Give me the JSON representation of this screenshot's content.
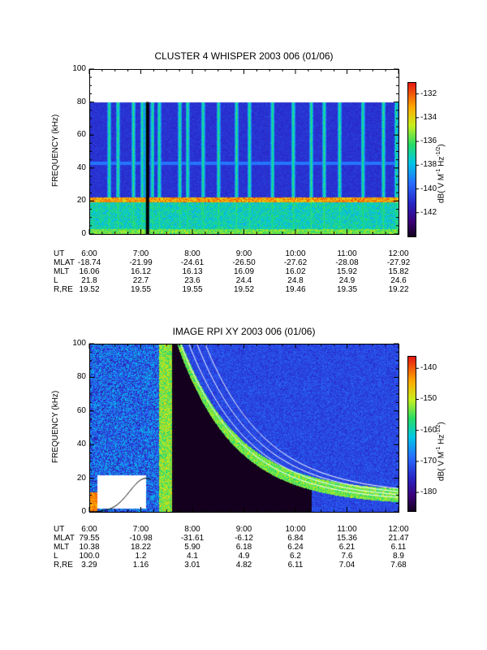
{
  "chart_data": [
    {
      "type": "heatmap",
      "title": "CLUSTER 4 WHISPER 2003 006 (01/06)",
      "ylabel": "FREQUENCY (kHz)",
      "colorbar_label": "dB( V M⁻¹ Hz⁻¹ᐟ²)",
      "colorbar_label_parts": {
        "main": "dB( V M",
        "sup1": "-1",
        "mid": " Hz",
        "sup2": "-1/2",
        "end": ")"
      },
      "ylim": [
        0,
        100
      ],
      "yticks": [
        "0",
        "20",
        "40",
        "60",
        "80",
        "100"
      ],
      "colorbar_ticks": [
        "-132",
        "-134",
        "-136",
        "-138",
        "-140",
        "-142"
      ],
      "colorbar_range": [
        -144,
        -131
      ],
      "x_ticks": [
        "6:00",
        "7:00",
        "8:00",
        "9:00",
        "10:00",
        "11:00",
        "12:00"
      ],
      "data_top_khz": 80,
      "features": {
        "plasma_line_khz": 21,
        "upper_line_khz": 43,
        "vertical_bursts_hours": [
          6.38,
          6.55,
          6.85,
          7.02,
          7.1,
          7.22,
          7.35,
          7.75,
          7.9,
          8.2,
          8.5,
          8.85,
          9.1,
          9.55,
          9.95,
          10.3,
          10.55,
          10.85,
          11.3,
          11.7,
          11.95
        ]
      },
      "ephemeris": {
        "rows": [
          {
            "name": "UT",
            "values": [
              "6:00",
              "7:00",
              "8:00",
              "9:00",
              "10:00",
              "11:00",
              "12:00"
            ]
          },
          {
            "name": "MLAT",
            "values": [
              "-18.74",
              "-21.99",
              "-24.61",
              "-26.50",
              "-27.62",
              "-28.08",
              "-27.92"
            ]
          },
          {
            "name": "MLT",
            "values": [
              "16.06",
              "16.12",
              "16.13",
              "16.09",
              "16.02",
              "15.92",
              "15.82"
            ]
          },
          {
            "name": "L",
            "values": [
              "21.8",
              "22.7",
              "23.6",
              "24.4",
              "24.8",
              "24.9",
              "24.6"
            ]
          },
          {
            "name": "R,RE",
            "values": [
              "19.52",
              "19.55",
              "19.55",
              "19.52",
              "19.46",
              "19.35",
              "19.22"
            ]
          }
        ]
      }
    },
    {
      "type": "heatmap",
      "title": "IMAGE RPI XY 2003 006 (01/06)",
      "ylabel": "FREQUENCY (kHz)",
      "colorbar_label_parts": {
        "main": "dB( V M",
        "sup1": "-1",
        "mid": " Hz",
        "sup2": "-1/2",
        "end": ")"
      },
      "ylim": [
        0,
        100
      ],
      "yticks": [
        "0",
        "20",
        "40",
        "60",
        "80",
        "100"
      ],
      "colorbar_ticks": [
        "-140",
        "-150",
        "-160",
        "-170",
        "-180"
      ],
      "colorbar_range": [
        -186,
        -136
      ],
      "x_ticks": [
        "6:00",
        "7:00",
        "8:00",
        "9:00",
        "10:00",
        "11:00",
        "12:00"
      ],
      "ephemeris": {
        "rows": [
          {
            "name": "UT",
            "values": [
              "6:00",
              "7:00",
              "8:00",
              "9:00",
              "10:00",
              "11:00",
              "12:00"
            ]
          },
          {
            "name": "MLAT",
            "values": [
              "79.55",
              "-10.98",
              "-31.61",
              "-6.12",
              "6.84",
              "15.36",
              "21.47"
            ]
          },
          {
            "name": "MLT",
            "values": [
              "10.38",
              "18.22",
              "5.90",
              "6.18",
              "6.24",
              "6.21",
              "6.11"
            ]
          },
          {
            "name": "L",
            "values": [
              "100.0",
              "1.2",
              "4.1",
              "4.9",
              "6.2",
              "7.6",
              "8.9"
            ]
          },
          {
            "name": "R,RE",
            "values": [
              "3.29",
              "1.16",
              "3.01",
              "4.82",
              "6.11",
              "7.04",
              "7.68"
            ]
          }
        ]
      }
    }
  ]
}
